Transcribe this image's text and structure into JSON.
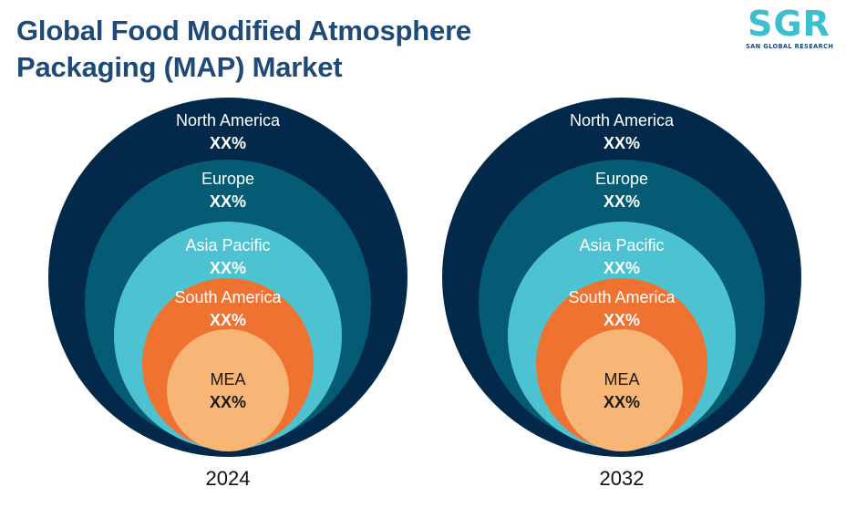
{
  "title": {
    "line1": "Global Food Modified Atmosphere",
    "line2": "Packaging (MAP) Market"
  },
  "logo": {
    "mark": "SGR",
    "subtitle": "SAN GLOBAL RESEARCH"
  },
  "colors": {
    "north_america": "#03294a",
    "europe": "#055b73",
    "asia_pacific": "#4dc3d1",
    "south_america": "#f07230",
    "mea": "#f8b676"
  },
  "charts": [
    {
      "year": "2024",
      "regions": [
        {
          "name": "North America",
          "value": "XX%"
        },
        {
          "name": "Europe",
          "value": "XX%"
        },
        {
          "name": "Asia Pacific",
          "value": "XX%"
        },
        {
          "name": "South America",
          "value": "XX%"
        },
        {
          "name": "MEA",
          "value": "XX%"
        }
      ]
    },
    {
      "year": "2032",
      "regions": [
        {
          "name": "North America",
          "value": "XX%"
        },
        {
          "name": "Europe",
          "value": "XX%"
        },
        {
          "name": "Asia Pacific",
          "value": "XX%"
        },
        {
          "name": "South America",
          "value": "XX%"
        },
        {
          "name": "MEA",
          "value": "XX%"
        }
      ]
    }
  ]
}
